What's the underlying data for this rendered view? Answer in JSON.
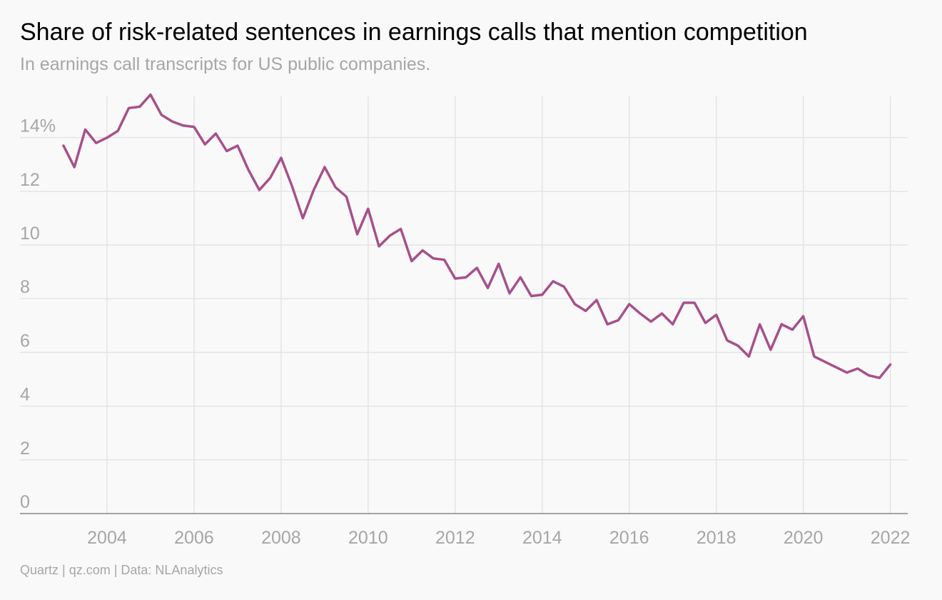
{
  "chart_data": {
    "type": "line",
    "title": "Share of risk-related sentences in earnings calls that mention competition",
    "subtitle": "In earnings call transcripts for US public companies.",
    "source": "Quartz | qz.com | Data: NLAnalytics",
    "xlabel": "",
    "ylabel": "",
    "xlim": [
      2002.0,
      2022.4
    ],
    "ylim": [
      0,
      15.8
    ],
    "y_ticks": [
      0,
      2,
      4,
      6,
      8,
      10,
      12,
      14
    ],
    "y_tick_labels": [
      "0",
      "2",
      "4",
      "6",
      "8",
      "10",
      "12",
      "14%"
    ],
    "x_ticks": [
      2004,
      2006,
      2008,
      2010,
      2012,
      2014,
      2016,
      2018,
      2020,
      2022
    ],
    "x_tick_labels": [
      "2004",
      "2006",
      "2008",
      "2010",
      "2012",
      "2014",
      "2016",
      "2018",
      "2020",
      "2022"
    ],
    "grid": true,
    "line_color": "#a7508b",
    "series": [
      {
        "x": [
          2003.0,
          2003.25,
          2003.5,
          2003.75,
          2004.0,
          2004.25,
          2004.5,
          2004.75,
          2005.0,
          2005.25,
          2005.5,
          2005.75,
          2006.0,
          2006.25,
          2006.5,
          2006.75,
          2007.0,
          2007.25,
          2007.5,
          2007.75,
          2008.0,
          2008.25,
          2008.5,
          2008.75,
          2009.0,
          2009.25,
          2009.5,
          2009.75,
          2010.0,
          2010.25,
          2010.5,
          2010.75,
          2011.0,
          2011.25,
          2011.5,
          2011.75,
          2012.0,
          2012.25,
          2012.5,
          2012.75,
          2013.0,
          2013.25,
          2013.5,
          2013.75,
          2014.0,
          2014.25,
          2014.5,
          2014.75,
          2015.0,
          2015.25,
          2015.5,
          2015.75,
          2016.0,
          2016.25,
          2016.5,
          2016.75,
          2017.0,
          2017.25,
          2017.5,
          2017.75,
          2018.0,
          2018.25,
          2018.5,
          2018.75,
          2019.0,
          2019.25,
          2019.5,
          2019.75,
          2020.0,
          2020.25,
          2020.5,
          2020.75,
          2021.0,
          2021.25,
          2021.5,
          2021.75,
          2022.0
        ],
        "values": [
          13.7,
          12.9,
          14.3,
          13.8,
          14.0,
          14.25,
          15.1,
          15.15,
          15.6,
          14.85,
          14.6,
          14.45,
          14.4,
          13.75,
          14.15,
          13.5,
          13.7,
          12.8,
          12.05,
          12.5,
          13.25,
          12.2,
          11.0,
          12.05,
          12.9,
          12.15,
          11.8,
          10.4,
          11.35,
          9.95,
          10.35,
          10.6,
          9.4,
          9.8,
          9.5,
          9.45,
          8.75,
          8.8,
          9.15,
          8.4,
          9.3,
          8.2,
          8.8,
          8.1,
          8.15,
          8.65,
          8.45,
          7.8,
          7.55,
          7.95,
          7.05,
          7.2,
          7.8,
          7.45,
          7.15,
          7.45,
          7.05,
          7.85,
          7.85,
          7.1,
          7.4,
          6.45,
          6.25,
          5.85,
          7.05,
          6.1,
          7.05,
          6.85,
          7.35,
          5.85,
          5.65,
          5.45,
          5.25,
          5.4,
          5.15,
          5.05,
          5.55
        ]
      }
    ]
  }
}
